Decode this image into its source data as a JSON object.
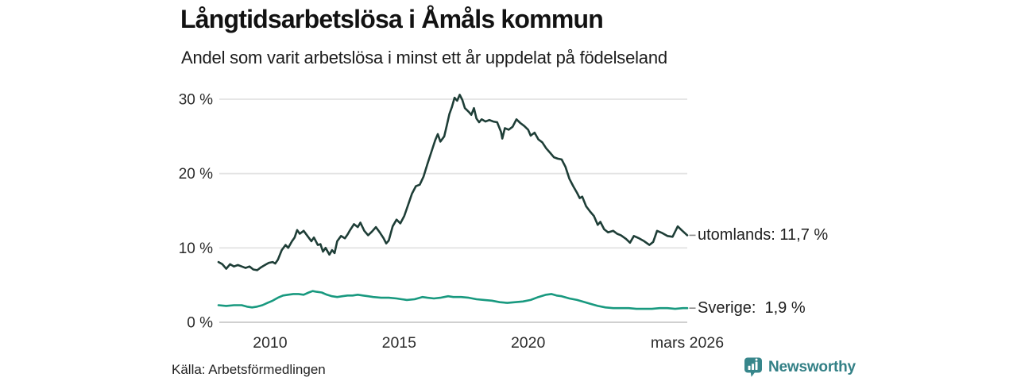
{
  "header": {
    "title": "Långtidsarbetslösa i Åmåls kommun",
    "subtitle": "Andel som varit arbetslösa i minst ett år uppdelat på födelseland"
  },
  "source": {
    "label": "Källa: Arbetsförmedlingen"
  },
  "branding": {
    "name": "Newsworthy",
    "logo_color": "#37868b",
    "text_color": "#338086"
  },
  "chart_data": {
    "type": "line",
    "title": "Långtidsarbetslösa i Åmåls kommun",
    "subtitle": "Andel som varit arbetslösa i minst ett år uppdelat på födelseland",
    "xlabel": "",
    "ylabel": "",
    "grid": true,
    "legend_position": "right-end-labels",
    "x_axis": {
      "range": [
        2008.0,
        2026.17
      ],
      "ticks": [
        {
          "x": 2010,
          "label": "2010"
        },
        {
          "x": 2015,
          "label": "2015"
        },
        {
          "x": 2020,
          "label": "2020"
        },
        {
          "x": 2026.17,
          "label": "mars 2026"
        }
      ]
    },
    "y_axis": {
      "range": [
        0,
        31.5
      ],
      "unit": "%",
      "ticks": [
        {
          "value": 0,
          "label": "0 %"
        },
        {
          "value": 10,
          "label": "10 %"
        },
        {
          "value": 20,
          "label": "20 %"
        },
        {
          "value": 30,
          "label": "30 %"
        }
      ]
    },
    "series": [
      {
        "name": "utomlands",
        "label": "utomlands: 11,7 %",
        "end_value": 11.7,
        "color": "#1e3e37",
        "points": [
          [
            2008.0,
            8.1
          ],
          [
            2008.15,
            7.8
          ],
          [
            2008.3,
            7.2
          ],
          [
            2008.45,
            7.8
          ],
          [
            2008.6,
            7.5
          ],
          [
            2008.75,
            7.7
          ],
          [
            2008.9,
            7.5
          ],
          [
            2009.05,
            7.3
          ],
          [
            2009.2,
            7.5
          ],
          [
            2009.35,
            7.1
          ],
          [
            2009.5,
            7.0
          ],
          [
            2009.65,
            7.4
          ],
          [
            2009.8,
            7.7
          ],
          [
            2009.95,
            8.0
          ],
          [
            2010.1,
            8.1
          ],
          [
            2010.2,
            7.9
          ],
          [
            2010.3,
            8.4
          ],
          [
            2010.45,
            9.7
          ],
          [
            2010.6,
            10.4
          ],
          [
            2010.7,
            10.0
          ],
          [
            2010.85,
            10.9
          ],
          [
            2010.95,
            11.4
          ],
          [
            2011.05,
            12.4
          ],
          [
            2011.15,
            11.9
          ],
          [
            2011.3,
            12.3
          ],
          [
            2011.45,
            11.6
          ],
          [
            2011.6,
            10.9
          ],
          [
            2011.7,
            11.4
          ],
          [
            2011.85,
            10.4
          ],
          [
            2011.95,
            10.5
          ],
          [
            2012.05,
            9.5
          ],
          [
            2012.15,
            10.0
          ],
          [
            2012.3,
            9.1
          ],
          [
            2012.4,
            9.7
          ],
          [
            2012.5,
            9.3
          ],
          [
            2012.6,
            10.9
          ],
          [
            2012.75,
            11.6
          ],
          [
            2012.9,
            11.3
          ],
          [
            2013.0,
            11.8
          ],
          [
            2013.1,
            12.4
          ],
          [
            2013.25,
            13.2
          ],
          [
            2013.4,
            12.8
          ],
          [
            2013.5,
            13.4
          ],
          [
            2013.65,
            12.3
          ],
          [
            2013.8,
            11.7
          ],
          [
            2013.95,
            12.2
          ],
          [
            2014.1,
            12.8
          ],
          [
            2014.25,
            12.1
          ],
          [
            2014.4,
            11.3
          ],
          [
            2014.5,
            10.6
          ],
          [
            2014.6,
            11.0
          ],
          [
            2014.75,
            12.9
          ],
          [
            2014.9,
            13.8
          ],
          [
            2015.05,
            13.3
          ],
          [
            2015.2,
            14.3
          ],
          [
            2015.35,
            15.8
          ],
          [
            2015.5,
            17.3
          ],
          [
            2015.65,
            18.3
          ],
          [
            2015.8,
            18.5
          ],
          [
            2015.95,
            19.6
          ],
          [
            2016.1,
            21.3
          ],
          [
            2016.25,
            22.9
          ],
          [
            2016.4,
            24.5
          ],
          [
            2016.5,
            25.3
          ],
          [
            2016.6,
            24.3
          ],
          [
            2016.75,
            25.0
          ],
          [
            2016.85,
            26.5
          ],
          [
            2016.95,
            28.0
          ],
          [
            2017.05,
            29.0
          ],
          [
            2017.15,
            30.2
          ],
          [
            2017.25,
            29.8
          ],
          [
            2017.35,
            30.6
          ],
          [
            2017.45,
            29.9
          ],
          [
            2017.55,
            28.8
          ],
          [
            2017.7,
            28.3
          ],
          [
            2017.8,
            27.9
          ],
          [
            2017.9,
            28.8
          ],
          [
            2018.0,
            27.4
          ],
          [
            2018.1,
            26.9
          ],
          [
            2018.2,
            27.3
          ],
          [
            2018.35,
            27.0
          ],
          [
            2018.5,
            27.2
          ],
          [
            2018.65,
            27.0
          ],
          [
            2018.8,
            26.9
          ],
          [
            2018.95,
            25.6
          ],
          [
            2019.0,
            24.7
          ],
          [
            2019.1,
            26.1
          ],
          [
            2019.25,
            25.9
          ],
          [
            2019.4,
            26.3
          ],
          [
            2019.55,
            27.3
          ],
          [
            2019.7,
            26.8
          ],
          [
            2019.85,
            26.4
          ],
          [
            2020.0,
            25.9
          ],
          [
            2020.1,
            25.1
          ],
          [
            2020.25,
            25.5
          ],
          [
            2020.4,
            24.6
          ],
          [
            2020.55,
            24.2
          ],
          [
            2020.7,
            23.4
          ],
          [
            2020.85,
            22.8
          ],
          [
            2021.0,
            22.2
          ],
          [
            2021.15,
            22.0
          ],
          [
            2021.3,
            21.9
          ],
          [
            2021.45,
            20.9
          ],
          [
            2021.6,
            19.3
          ],
          [
            2021.75,
            18.3
          ],
          [
            2021.9,
            17.4
          ],
          [
            2022.0,
            16.7
          ],
          [
            2022.1,
            16.9
          ],
          [
            2022.25,
            15.6
          ],
          [
            2022.4,
            14.9
          ],
          [
            2022.55,
            14.3
          ],
          [
            2022.7,
            13.1
          ],
          [
            2022.8,
            13.5
          ],
          [
            2022.95,
            12.5
          ],
          [
            2023.1,
            12.1
          ],
          [
            2023.3,
            12.3
          ],
          [
            2023.45,
            11.9
          ],
          [
            2023.6,
            11.7
          ],
          [
            2023.8,
            11.2
          ],
          [
            2023.95,
            10.7
          ],
          [
            2024.1,
            11.6
          ],
          [
            2024.3,
            11.3
          ],
          [
            2024.5,
            10.9
          ],
          [
            2024.7,
            10.4
          ],
          [
            2024.85,
            10.8
          ],
          [
            2025.0,
            12.3
          ],
          [
            2025.2,
            12.0
          ],
          [
            2025.4,
            11.6
          ],
          [
            2025.6,
            11.5
          ],
          [
            2025.8,
            12.9
          ],
          [
            2025.95,
            12.4
          ],
          [
            2026.17,
            11.7
          ]
        ]
      },
      {
        "name": "Sverige",
        "label": "Sverige:  1,9 %",
        "end_value": 1.9,
        "color": "#18997f",
        "points": [
          [
            2008.0,
            2.3
          ],
          [
            2008.3,
            2.2
          ],
          [
            2008.6,
            2.3
          ],
          [
            2008.9,
            2.3
          ],
          [
            2009.1,
            2.1
          ],
          [
            2009.3,
            2.0
          ],
          [
            2009.5,
            2.1
          ],
          [
            2009.7,
            2.3
          ],
          [
            2009.9,
            2.6
          ],
          [
            2010.1,
            2.9
          ],
          [
            2010.3,
            3.3
          ],
          [
            2010.5,
            3.6
          ],
          [
            2010.7,
            3.7
          ],
          [
            2010.9,
            3.8
          ],
          [
            2011.1,
            3.8
          ],
          [
            2011.3,
            3.7
          ],
          [
            2011.5,
            4.0
          ],
          [
            2011.65,
            4.2
          ],
          [
            2011.8,
            4.1
          ],
          [
            2012.0,
            4.0
          ],
          [
            2012.2,
            3.7
          ],
          [
            2012.4,
            3.5
          ],
          [
            2012.6,
            3.4
          ],
          [
            2012.8,
            3.5
          ],
          [
            2013.0,
            3.6
          ],
          [
            2013.2,
            3.6
          ],
          [
            2013.4,
            3.7
          ],
          [
            2013.6,
            3.6
          ],
          [
            2013.8,
            3.5
          ],
          [
            2014.0,
            3.4
          ],
          [
            2014.3,
            3.3
          ],
          [
            2014.6,
            3.3
          ],
          [
            2014.9,
            3.2
          ],
          [
            2015.1,
            3.1
          ],
          [
            2015.3,
            3.0
          ],
          [
            2015.6,
            3.1
          ],
          [
            2015.9,
            3.4
          ],
          [
            2016.1,
            3.3
          ],
          [
            2016.35,
            3.2
          ],
          [
            2016.6,
            3.3
          ],
          [
            2016.9,
            3.5
          ],
          [
            2017.1,
            3.4
          ],
          [
            2017.4,
            3.4
          ],
          [
            2017.7,
            3.3
          ],
          [
            2018.0,
            3.1
          ],
          [
            2018.3,
            3.0
          ],
          [
            2018.6,
            2.9
          ],
          [
            2018.9,
            2.7
          ],
          [
            2019.2,
            2.6
          ],
          [
            2019.5,
            2.7
          ],
          [
            2019.8,
            2.8
          ],
          [
            2020.1,
            3.0
          ],
          [
            2020.4,
            3.4
          ],
          [
            2020.7,
            3.7
          ],
          [
            2020.9,
            3.8
          ],
          [
            2021.1,
            3.6
          ],
          [
            2021.3,
            3.5
          ],
          [
            2021.6,
            3.2
          ],
          [
            2021.9,
            3.0
          ],
          [
            2022.1,
            2.8
          ],
          [
            2022.4,
            2.5
          ],
          [
            2022.7,
            2.2
          ],
          [
            2023.0,
            2.0
          ],
          [
            2023.3,
            1.9
          ],
          [
            2023.6,
            1.9
          ],
          [
            2023.9,
            1.9
          ],
          [
            2024.2,
            1.8
          ],
          [
            2024.5,
            1.8
          ],
          [
            2024.8,
            1.8
          ],
          [
            2025.1,
            1.9
          ],
          [
            2025.4,
            1.9
          ],
          [
            2025.7,
            1.8
          ],
          [
            2026.0,
            1.9
          ],
          [
            2026.17,
            1.9
          ]
        ]
      }
    ],
    "colors": {
      "grid": "#e3e3e3",
      "baseline": "#c9c9c9",
      "tick_text": "#2b2b2b",
      "end_tick": "#8a8a8a"
    }
  }
}
